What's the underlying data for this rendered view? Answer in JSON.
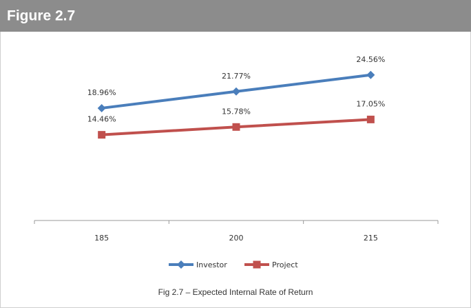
{
  "figure_label": "Figure 2.7",
  "chart_data": {
    "type": "line",
    "caption": "Fig 2.7 – Expected Internal Rate of Return",
    "categories": [
      "185",
      "200",
      "215"
    ],
    "ylim": [
      0,
      30
    ],
    "legend": "bottom",
    "series": [
      {
        "name": "Investor",
        "color": "#4a7ebb",
        "marker": "diamond",
        "values": [
          18.96,
          21.77,
          24.56
        ],
        "value_labels": [
          "18.96%",
          "21.77%",
          "24.56%"
        ]
      },
      {
        "name": "Project",
        "color": "#c0504d",
        "marker": "square",
        "values": [
          14.46,
          15.78,
          17.05
        ],
        "value_labels": [
          "14.46%",
          "15.78%",
          "17.05%"
        ]
      }
    ]
  }
}
